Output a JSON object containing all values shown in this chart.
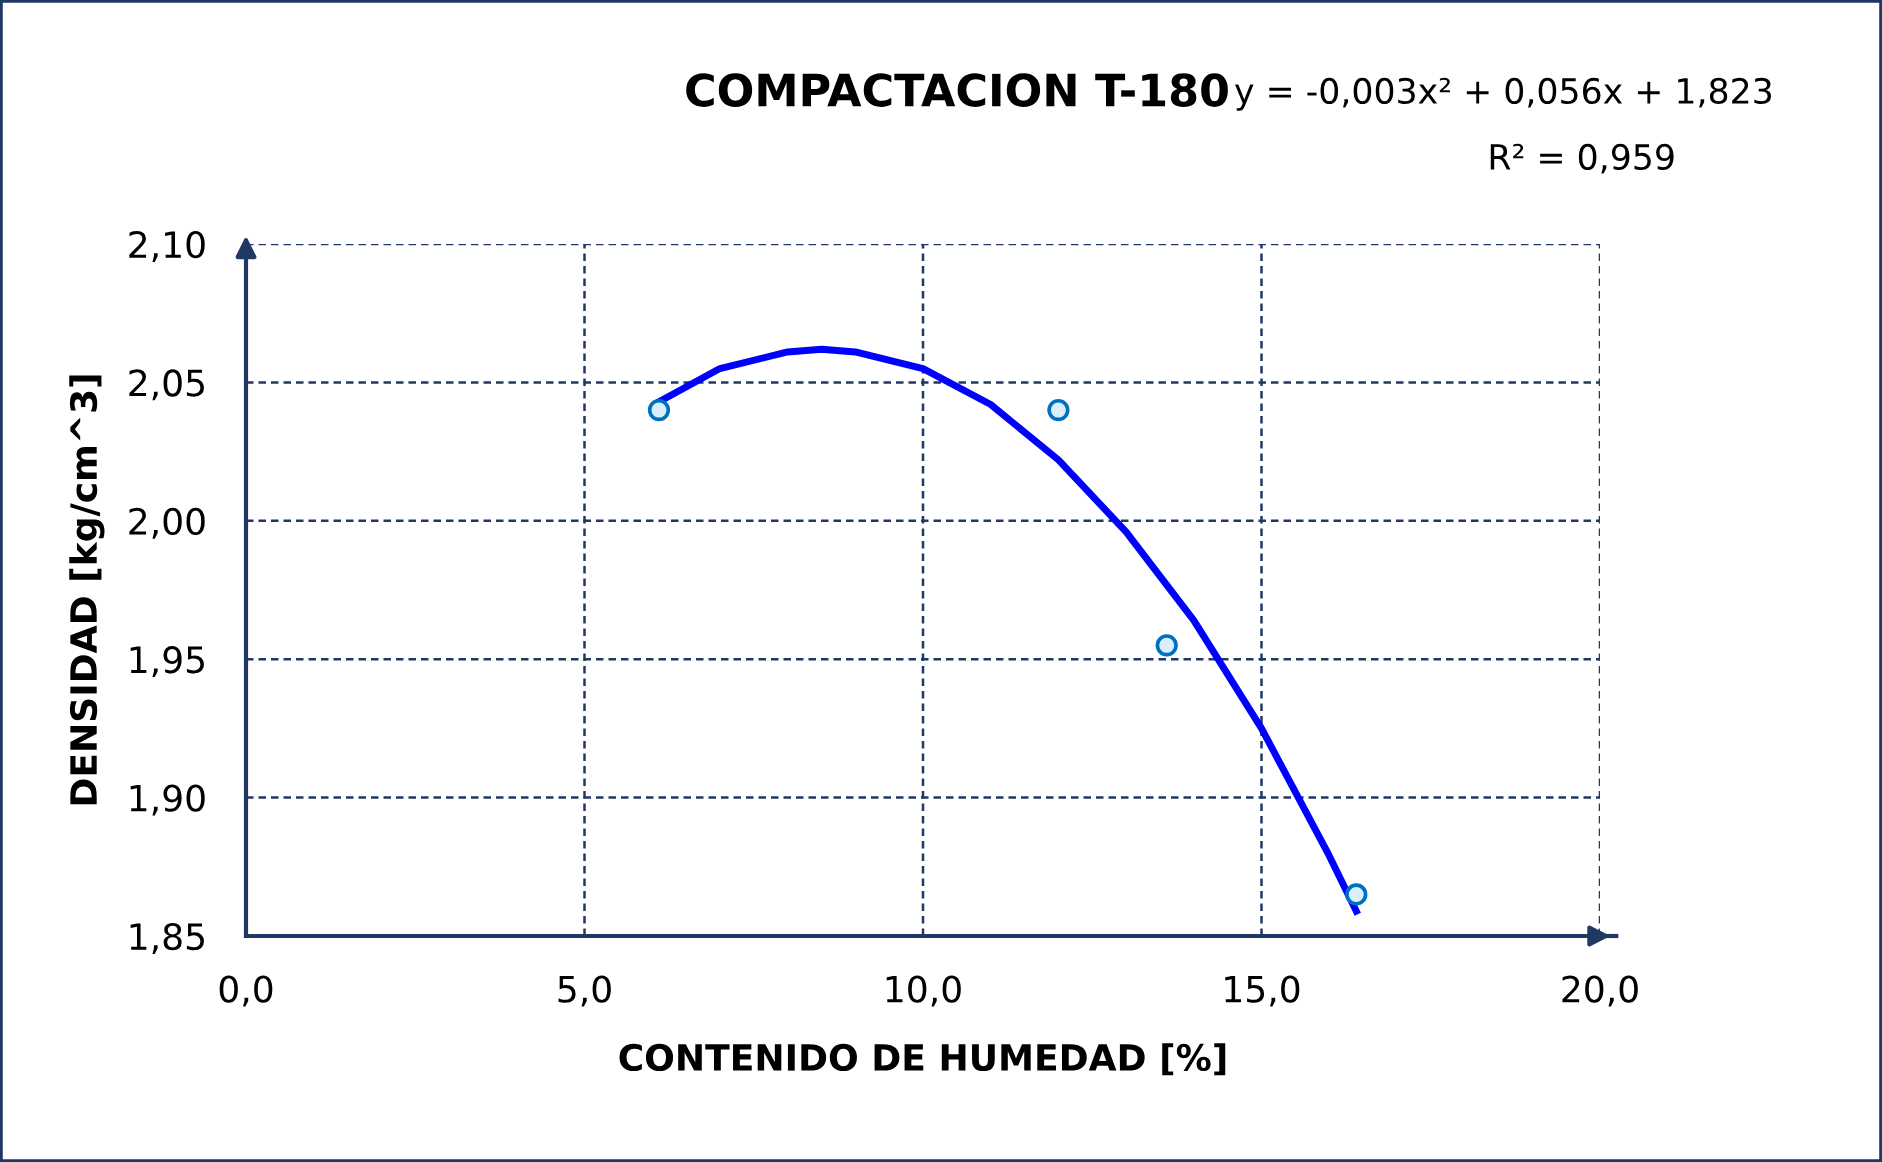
{
  "chart_data": {
    "type": "scatter",
    "title": "COMPACTACION T-180",
    "xlabel": "CONTENIDO DE HUMEDAD [%]",
    "ylabel": "DENSIDAD [kg/cm^3]",
    "annotations": [
      "y = -0,003x² + 0,056x + 1,823",
      "R² = 0,959"
    ],
    "series": [
      {
        "color": "#0070c0",
        "marker": "circle",
        "x": [
          6.1,
          12.0,
          13.6,
          16.4
        ],
        "values": [
          2.04,
          2.04,
          1.955,
          1.865
        ]
      },
      {
        "type": "line",
        "color": "#0000ff",
        "marker": "none",
        "line_style": "solid",
        "x": [
          6.1,
          7.0,
          8.0,
          8.5,
          9.0,
          10.0,
          11.0,
          12.0,
          13.0,
          14.0,
          15.0,
          16.0,
          16.4
        ],
        "values": [
          2.043,
          2.055,
          2.061,
          2.062,
          2.061,
          2.055,
          2.042,
          2.022,
          1.996,
          1.964,
          1.925,
          1.879,
          1.859
        ]
      }
    ],
    "xlim": [
      0,
      20
    ],
    "ylim": [
      1.85,
      2.1
    ],
    "xticks": [
      {
        "value": 0,
        "label": "0,0"
      },
      {
        "value": 5,
        "label": "5,0"
      },
      {
        "value": 10,
        "label": "10,0"
      },
      {
        "value": 15,
        "label": "15,0"
      },
      {
        "value": 20,
        "label": "20,0"
      }
    ],
    "yticks": [
      {
        "value": 1.85,
        "label": "1,85"
      },
      {
        "value": 1.9,
        "label": "1,90"
      },
      {
        "value": 1.95,
        "label": "1,95"
      },
      {
        "value": 2.0,
        "label": "2,00"
      },
      {
        "value": 2.05,
        "label": "2,05"
      },
      {
        "value": 2.1,
        "label": "2,10"
      }
    ],
    "grid": true
  }
}
